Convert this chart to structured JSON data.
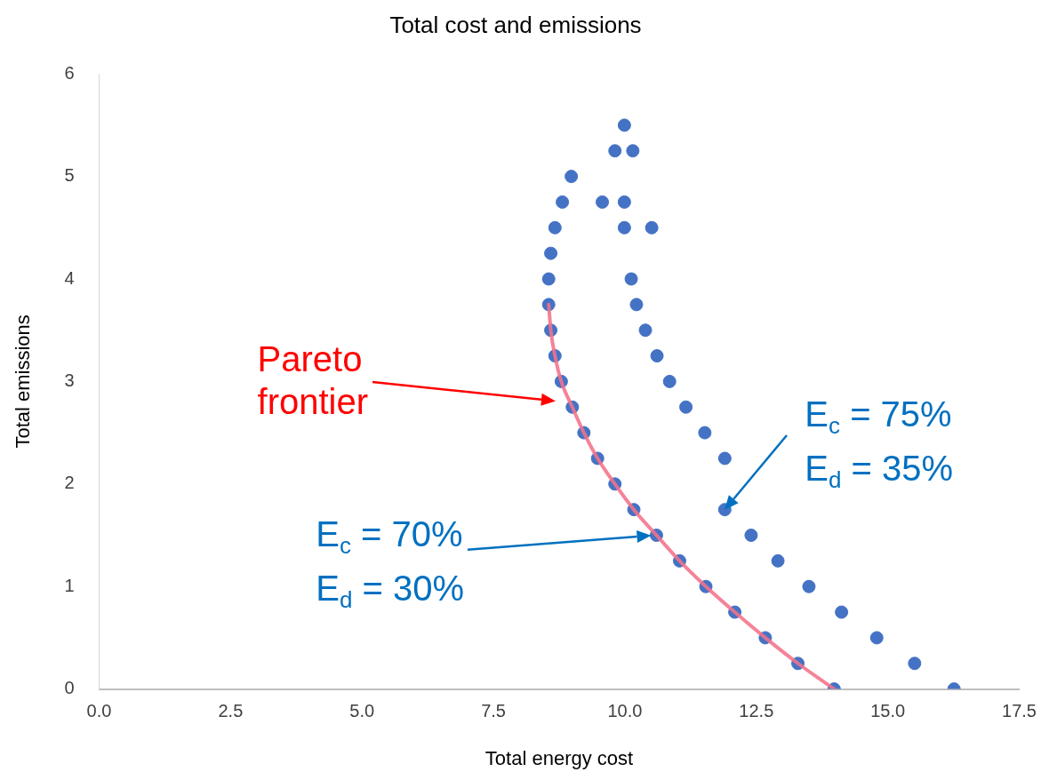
{
  "chart_data": {
    "type": "scatter",
    "title": "Total cost and emissions",
    "xlabel": "Total energy cost",
    "ylabel": "Total emissions",
    "series": [
      {
        "color": "#4472c4",
        "marker": "circle",
        "x": [
          8.55,
          8.59,
          8.67,
          8.81,
          8.98,
          9.81,
          9.99,
          10.15,
          9.57,
          9.99,
          9.99,
          10.51,
          10.12,
          10.22,
          10.39,
          10.61,
          10.85,
          11.16,
          11.52,
          11.9,
          11.9,
          12.4,
          12.91,
          13.5,
          14.12,
          14.79,
          15.51,
          16.26,
          8.55,
          8.59,
          8.67,
          8.79,
          9.0,
          9.22,
          9.48,
          9.81,
          10.17,
          10.6,
          11.04,
          11.54,
          12.09,
          12.67,
          13.29,
          13.98
        ],
        "values": [
          4.0,
          4.25,
          4.5,
          4.75,
          5.0,
          5.25,
          5.5,
          5.25,
          4.75,
          4.75,
          4.5,
          4.5,
          4.0,
          3.75,
          3.5,
          3.25,
          3.0,
          2.75,
          2.5,
          2.25,
          1.75,
          1.5,
          1.25,
          1.0,
          0.75,
          0.5,
          0.25,
          0,
          3.75,
          3.5,
          3.25,
          3.0,
          2.75,
          2.5,
          2.25,
          2.0,
          1.75,
          1.5,
          1.25,
          1.0,
          0.75,
          0.5,
          0.25,
          0
        ]
      },
      {
        "type": "line",
        "color": "#f4728a",
        "marker": "none",
        "line_style": "solid",
        "x": [
          8.55,
          8.59,
          8.67,
          8.79,
          9.0,
          9.22,
          9.48,
          9.81,
          10.17,
          10.6,
          11.04,
          11.54,
          12.09,
          12.67,
          13.29,
          13.98
        ],
        "values": [
          3.75,
          3.5,
          3.25,
          3.0,
          2.75,
          2.5,
          2.25,
          2.0,
          1.75,
          1.5,
          1.25,
          1.0,
          0.75,
          0.5,
          0.25,
          0
        ]
      }
    ],
    "xlim": [
      0,
      17.5
    ],
    "xticks": [
      {
        "value": 0,
        "label": "0.0"
      },
      {
        "value": 2.5,
        "label": "2.5"
      },
      {
        "value": 5,
        "label": "5.0"
      },
      {
        "value": 7.5,
        "label": "7.5"
      },
      {
        "value": 10,
        "label": "10.0"
      },
      {
        "value": 12.5,
        "label": "12.5"
      },
      {
        "value": 15,
        "label": "15.0"
      },
      {
        "value": 17.5,
        "label": "17.5"
      }
    ],
    "ylim": [
      0,
      6
    ],
    "yticks": [
      0,
      1,
      2,
      3,
      4,
      5,
      6
    ],
    "grid": false,
    "legend": false,
    "annotations": [
      "Pareto\nfrontier",
      "E$_{c}$ = 70%\nE$_{d}$ = 30%",
      {
        "text": "E$_{c}$ = 75%\nE$_{d}$ = 35%",
        "x": 11.9,
        "y": 1.75
      }
    ]
  }
}
